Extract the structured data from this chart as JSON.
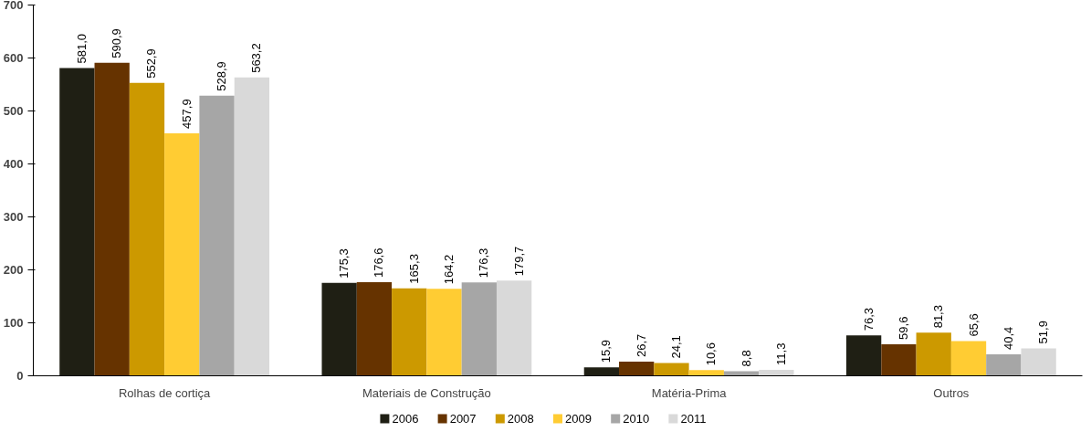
{
  "chart_data": {
    "type": "bar",
    "categories": [
      "Rolhas de cortiça",
      "Materiais de Construção",
      "Matéria-Prima",
      "Outros"
    ],
    "series": [
      {
        "name": "2006",
        "color": "#1f1f14",
        "values": [
          581.0,
          175.3,
          15.9,
          76.3
        ],
        "value_labels": [
          "581,0",
          "175,3",
          "15,9",
          "76,3"
        ]
      },
      {
        "name": "2007",
        "color": "#663300",
        "values": [
          590.9,
          176.6,
          26.7,
          59.6
        ],
        "value_labels": [
          "590,9",
          "176,6",
          "26,7",
          "59,6"
        ]
      },
      {
        "name": "2008",
        "color": "#cc9900",
        "values": [
          552.9,
          165.3,
          24.1,
          81.3
        ],
        "value_labels": [
          "552,9",
          "165,3",
          "24,1",
          "81,3"
        ]
      },
      {
        "name": "2009",
        "color": "#ffcc33",
        "values": [
          457.9,
          164.2,
          10.6,
          65.6
        ],
        "value_labels": [
          "457,9",
          "164,2",
          "10,6",
          "65,6"
        ]
      },
      {
        "name": "2010",
        "color": "#a6a6a6",
        "values": [
          528.9,
          176.3,
          8.8,
          40.4
        ],
        "value_labels": [
          "528,9",
          "176,3",
          "8,8",
          "40,4"
        ]
      },
      {
        "name": "2011",
        "color": "#d9d9d9",
        "values": [
          563.2,
          179.7,
          11.3,
          51.9
        ],
        "value_labels": [
          "563,2",
          "179,7",
          "11,3",
          "51,9"
        ]
      }
    ],
    "ylim": [
      0,
      700
    ],
    "yticks": [
      0,
      100,
      200,
      300,
      400,
      500,
      600,
      700
    ],
    "grid": false,
    "legend": "bottom"
  }
}
